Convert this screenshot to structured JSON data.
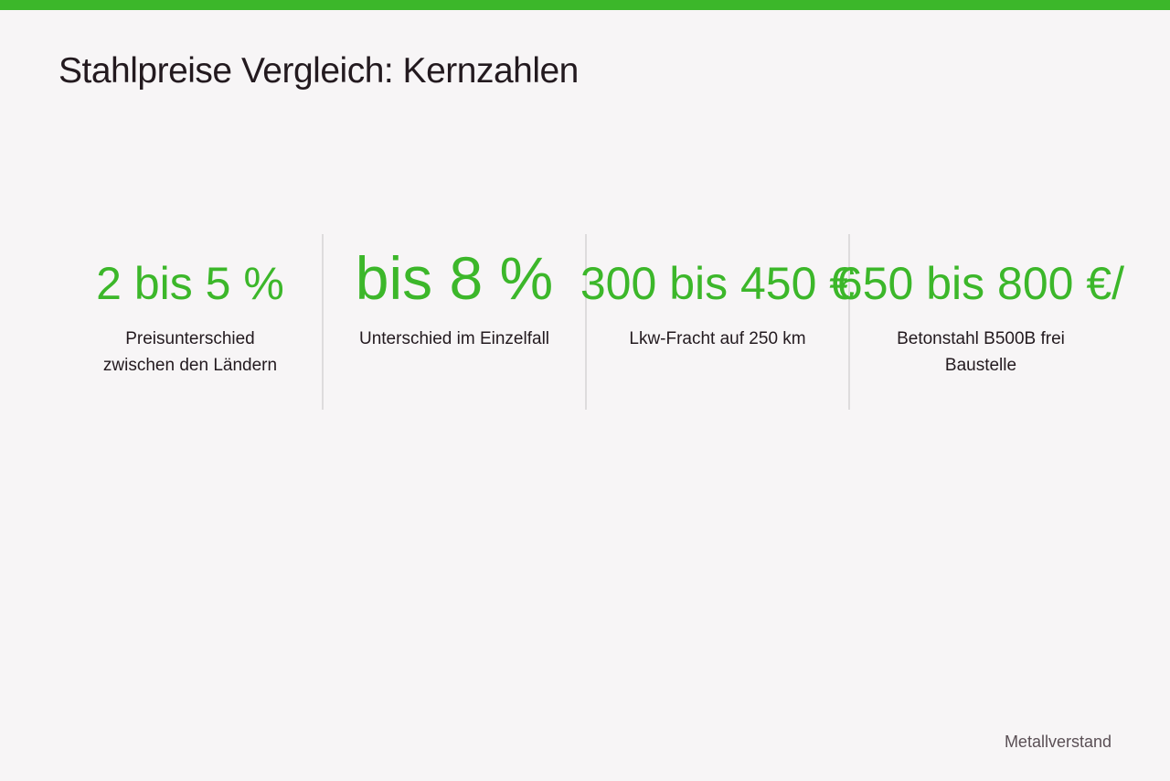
{
  "header": {
    "title": "Stahlpreise Vergleich: Kernzahlen"
  },
  "stats": [
    {
      "value": "2 bis 5 %",
      "label": "Preisunterschied zwischen den Ländern"
    },
    {
      "value": "bis 8 %",
      "label": "Unterschied im Einzelfall"
    },
    {
      "value": "300 bis 450 €",
      "label": "Lkw-Fracht auf 250 km"
    },
    {
      "value": "650 bis 800 €/",
      "label": "Betonstahl B500B frei Baustelle"
    }
  ],
  "footer": {
    "brand": "Metallverstand"
  }
}
